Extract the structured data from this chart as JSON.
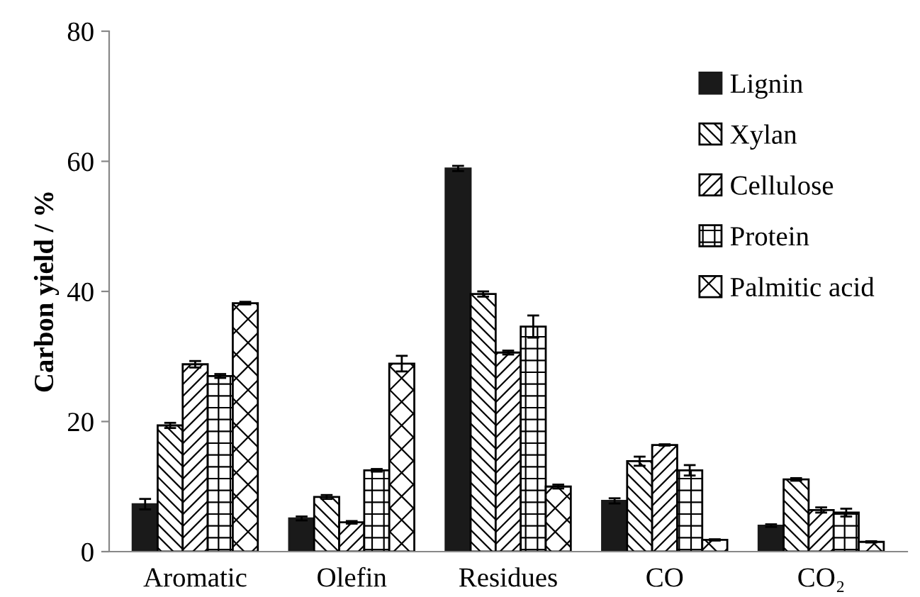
{
  "chart_data": {
    "type": "bar",
    "ylabel": "Carbon yield / %",
    "categories": [
      "Aromatic",
      "Olefin",
      "Residues",
      "CO",
      "CO₂"
    ],
    "series": [
      {
        "name": "Lignin",
        "color": "#1a1a1a",
        "values": [
          7.3,
          5.1,
          58.9,
          7.8,
          4.0
        ],
        "errors": [
          0.8,
          0.3,
          0.4,
          0.4,
          0.2
        ]
      },
      {
        "name": "Xylan",
        "color": "#000000",
        "values": [
          19.4,
          8.4,
          39.6,
          13.9,
          11.1
        ],
        "errors": [
          0.4,
          0.3,
          0.4,
          0.7,
          0.2
        ]
      },
      {
        "name": "Cellulose",
        "color": "#000000",
        "values": [
          28.8,
          4.5,
          30.6,
          16.4,
          6.4
        ],
        "errors": [
          0.5,
          0.2,
          0.3,
          0.1,
          0.4
        ]
      },
      {
        "name": "Protein",
        "color": "#000000",
        "values": [
          27.0,
          12.5,
          34.6,
          12.5,
          6.0
        ],
        "errors": [
          0.3,
          0.2,
          1.7,
          0.8,
          0.6
        ]
      },
      {
        "name": "Palmitic acid",
        "color": "#000000",
        "values": [
          38.2,
          28.9,
          10.0,
          1.8,
          1.5
        ],
        "errors": [
          0.2,
          1.2,
          0.3,
          0.1,
          0.1
        ]
      }
    ],
    "ylim": [
      0,
      80
    ],
    "yticks": [
      0,
      20,
      40,
      60,
      80
    ],
    "grid": false,
    "legend": "right"
  }
}
